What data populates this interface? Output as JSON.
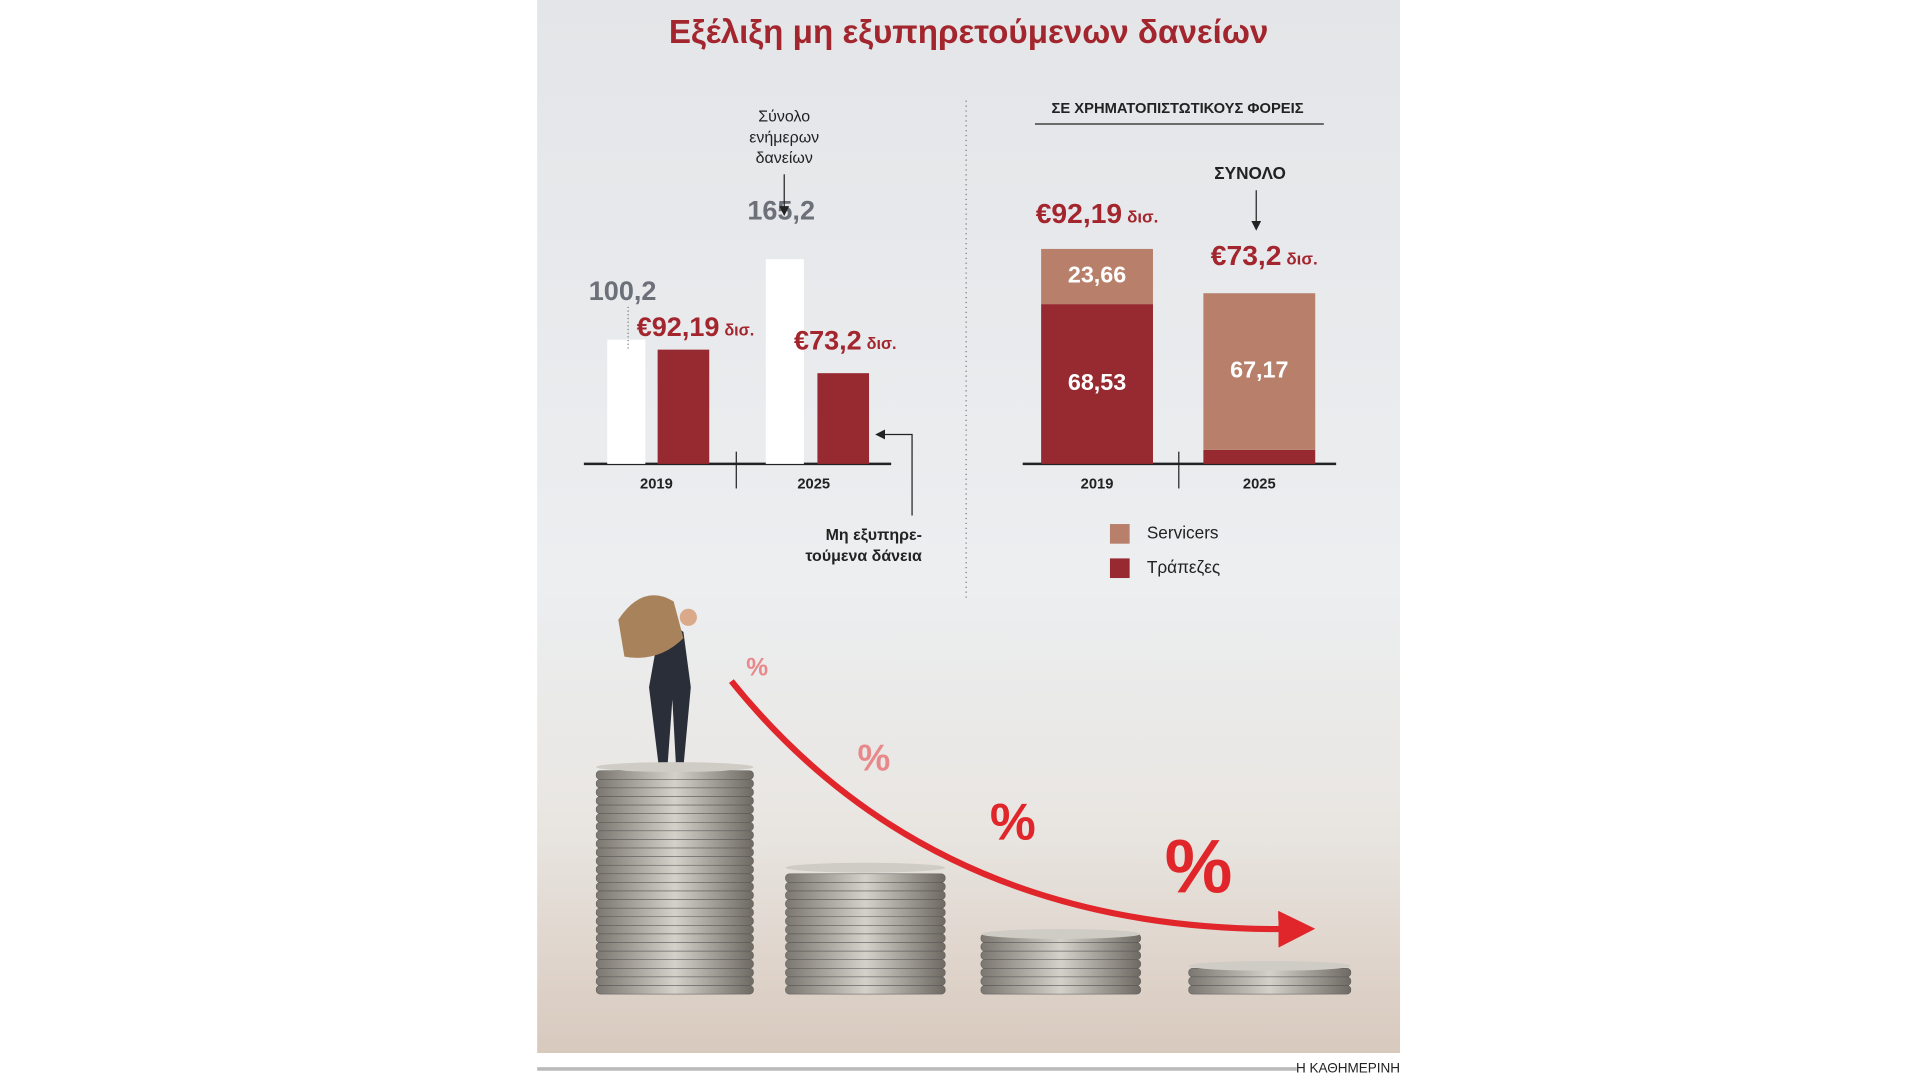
{
  "title": "Εξέλιξη μη εξυπηρετούμενων δανείων",
  "source": "Η ΚΑΘΗΜΕΡΙΝΗ",
  "chart_data": [
    {
      "type": "bar",
      "categories": [
        "2019",
        "2025"
      ],
      "unit_label": "δισ.",
      "series": [
        {
          "name": "Σύνολο\nενήμερων\nδανείων",
          "color": "#ffffff",
          "label_color": "#6b7079",
          "values": [
            100.2,
            165.2
          ],
          "value_labels": [
            "100,2",
            "165,2"
          ]
        },
        {
          "name": "Μη εξυπηρε-\nτούμενα δάνεια",
          "color": "#972a30",
          "label_color": "#a3262e",
          "values": [
            92.19,
            73.2
          ],
          "value_labels": [
            "€92,19",
            "€73,2"
          ]
        }
      ]
    },
    {
      "type": "stacked_bar",
      "title": "ΣΕ ΧΡΗΜΑΤΟΠΙΣΤΩΤΙΚΟΥΣ ΦΟΡΕΙΣ",
      "annotation": "ΣΥΝΟΛΟ",
      "categories": [
        "2019",
        "2025"
      ],
      "unit_label": "δισ.",
      "totals": [
        92.19,
        73.2
      ],
      "total_labels": [
        "€92,19",
        "€73,2"
      ],
      "series": [
        {
          "name": "Τράπεζες",
          "color": "#972a30",
          "values": [
            68.53,
            6.03
          ],
          "value_labels": [
            "68,53",
            null
          ]
        },
        {
          "name": "Servicers",
          "color": "#b8806b",
          "values": [
            23.66,
            67.17
          ],
          "value_labels": [
            "23,66",
            "67,17"
          ]
        }
      ]
    }
  ],
  "photo": {
    "symbols": [
      "%",
      "%",
      "%",
      "%"
    ]
  }
}
